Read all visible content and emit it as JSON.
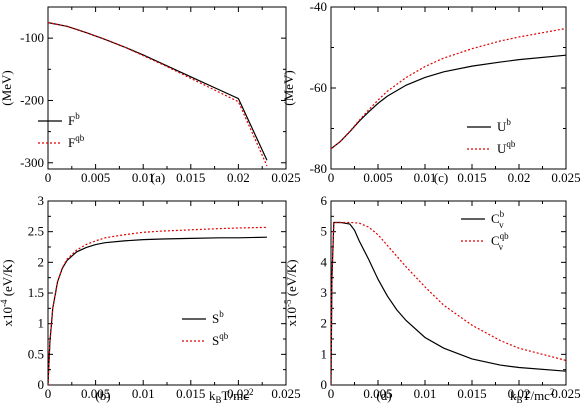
{
  "chart_data": [
    {
      "id": "a",
      "type": "line",
      "panel_label": "(a)",
      "ylabel": "(MeV)",
      "xlabel": "",
      "xlim": [
        0,
        0.025
      ],
      "ylim": [
        -310,
        -50
      ],
      "xticks": [
        0,
        0.005,
        0.01,
        0.015,
        0.02,
        0.025
      ],
      "xtick_labels": [
        "0",
        "0.005",
        "0.01",
        "0.015",
        "0.02",
        "0.025"
      ],
      "yticks": [
        -300,
        -200,
        -100
      ],
      "ytick_labels": [
        "-300",
        "-200",
        "-100"
      ],
      "legend_position": "bottom-left",
      "series": [
        {
          "name": "F",
          "sup": "b",
          "color": "#000000",
          "dash": "",
          "x": [
            0,
            0.002,
            0.004,
            0.006,
            0.008,
            0.01,
            0.012,
            0.014,
            0.016,
            0.018,
            0.02,
            0.023
          ],
          "y": [
            -75,
            -81,
            -91,
            -102,
            -114,
            -127,
            -141,
            -155,
            -169,
            -183,
            -197,
            -296
          ]
        },
        {
          "name": "F",
          "sup": "qb",
          "color": "#e00000",
          "dash": "2,2",
          "x": [
            0,
            0.002,
            0.004,
            0.006,
            0.008,
            0.01,
            0.012,
            0.014,
            0.016,
            0.018,
            0.02,
            0.023
          ],
          "y": [
            -75,
            -81,
            -91,
            -102,
            -114,
            -128,
            -142,
            -157,
            -172,
            -187,
            -202,
            -305
          ]
        }
      ]
    },
    {
      "id": "c",
      "type": "line",
      "panel_label": "(c)",
      "ylabel": "(MeV)",
      "xlabel": "",
      "xlim": [
        0,
        0.025
      ],
      "ylim": [
        -80,
        -40
      ],
      "xticks": [
        0,
        0.005,
        0.01,
        0.015,
        0.02,
        0.025
      ],
      "xtick_labels": [
        "0",
        "0.005",
        "0.01",
        "0.015",
        "0.02",
        "0.025"
      ],
      "yticks": [
        -80,
        -60,
        -40
      ],
      "ytick_labels": [
        "-80",
        "-60",
        "-40"
      ],
      "legend_position": "bottom-right",
      "series": [
        {
          "name": "U",
          "sup": "b",
          "color": "#000000",
          "dash": "",
          "x": [
            0,
            0.001,
            0.002,
            0.003,
            0.004,
            0.005,
            0.006,
            0.008,
            0.01,
            0.012,
            0.015,
            0.018,
            0.02,
            0.025
          ],
          "y": [
            -75,
            -73.2,
            -70.8,
            -68.2,
            -65.9,
            -63.8,
            -62.0,
            -59.3,
            -57.4,
            -56.0,
            -54.6,
            -53.6,
            -53.0,
            -51.9
          ]
        },
        {
          "name": "U",
          "sup": "qb",
          "color": "#e00000",
          "dash": "2,2",
          "x": [
            0,
            0.001,
            0.002,
            0.003,
            0.004,
            0.005,
            0.006,
            0.008,
            0.01,
            0.012,
            0.015,
            0.018,
            0.02,
            0.025
          ],
          "y": [
            -75,
            -73.2,
            -70.7,
            -68.0,
            -65.4,
            -63.0,
            -60.8,
            -57.4,
            -54.7,
            -52.6,
            -50.3,
            -48.4,
            -47.4,
            -45.3
          ]
        }
      ]
    },
    {
      "id": "b",
      "type": "line",
      "panel_label": "(b)",
      "ylabel": "x10",
      "ylabel_exp": "-4",
      "ylabel_unit": "(eV/K)",
      "xlabel": "k",
      "xlabel_sub": "B",
      "xlabel_rest": "T/mc",
      "xlabel_exp": "2",
      "xlim": [
        0,
        0.025
      ],
      "ylim": [
        0,
        3
      ],
      "xticks": [
        0,
        0.005,
        0.01,
        0.015,
        0.02,
        0.025
      ],
      "xtick_labels": [
        "0",
        "0.005",
        "0.01",
        "0.015",
        "0.02",
        "0.025"
      ],
      "yticks": [
        0,
        0.5,
        1,
        1.5,
        2,
        2.5,
        3
      ],
      "ytick_labels": [
        "0",
        "0.5",
        "1",
        "1.5",
        "2",
        "2.5",
        "3"
      ],
      "legend_position": "bottom-right",
      "series": [
        {
          "name": "S",
          "sup": "b",
          "color": "#000000",
          "dash": "",
          "x": [
            0,
            0.0002,
            0.0005,
            0.001,
            0.0015,
            0.002,
            0.003,
            0.004,
            0.005,
            0.006,
            0.008,
            0.01,
            0.012,
            0.015,
            0.018,
            0.02,
            0.023
          ],
          "y": [
            0,
            0.7,
            1.25,
            1.68,
            1.9,
            2.03,
            2.17,
            2.24,
            2.29,
            2.32,
            2.35,
            2.37,
            2.38,
            2.39,
            2.4,
            2.4,
            2.41
          ]
        },
        {
          "name": "S",
          "sup": "qb",
          "color": "#e00000",
          "dash": "2,2",
          "x": [
            0,
            0.0002,
            0.0005,
            0.001,
            0.0015,
            0.002,
            0.003,
            0.004,
            0.005,
            0.006,
            0.008,
            0.01,
            0.012,
            0.015,
            0.018,
            0.02,
            0.023
          ],
          "y": [
            0,
            0.7,
            1.25,
            1.68,
            1.91,
            2.05,
            2.2,
            2.29,
            2.35,
            2.4,
            2.45,
            2.49,
            2.51,
            2.53,
            2.55,
            2.56,
            2.57
          ]
        }
      ]
    },
    {
      "id": "d",
      "type": "line",
      "panel_label": "(d)",
      "ylabel": "x10",
      "ylabel_exp": "-5",
      "ylabel_unit": "(eV/K)",
      "xlabel": "k",
      "xlabel_sub": "B",
      "xlabel_rest": "T/mc",
      "xlabel_exp": "2",
      "xlim": [
        0,
        0.025
      ],
      "ylim": [
        0,
        6
      ],
      "xticks": [
        0,
        0.005,
        0.01,
        0.015,
        0.02,
        0.025
      ],
      "xtick_labels": [
        "0",
        "0.005",
        "0.01",
        "0.015",
        "0.02",
        "0.025"
      ],
      "yticks": [
        0,
        1,
        2,
        3,
        4,
        5,
        6
      ],
      "ytick_labels": [
        "0",
        "1",
        "2",
        "3",
        "4",
        "5",
        "6"
      ],
      "legend_position": "top-right",
      "legend_sub": "v",
      "series": [
        {
          "name": "C",
          "sup": "b",
          "color": "#000000",
          "dash": "",
          "x": [
            0,
            0.0001,
            0.0003,
            0.001,
            0.002,
            0.0025,
            0.003,
            0.004,
            0.005,
            0.006,
            0.007,
            0.008,
            0.01,
            0.012,
            0.015,
            0.018,
            0.02,
            0.025
          ],
          "y": [
            0,
            3.5,
            5.3,
            5.3,
            5.25,
            5.05,
            4.7,
            4.1,
            3.45,
            2.9,
            2.45,
            2.1,
            1.55,
            1.2,
            0.85,
            0.65,
            0.57,
            0.45
          ]
        },
        {
          "name": "C",
          "sup": "qb",
          "color": "#e00000",
          "dash": "2,2",
          "x": [
            0,
            0.0001,
            0.0003,
            0.001,
            0.002,
            0.003,
            0.004,
            0.005,
            0.006,
            0.007,
            0.008,
            0.01,
            0.012,
            0.015,
            0.018,
            0.02,
            0.025
          ],
          "y": [
            0,
            3.5,
            5.3,
            5.3,
            5.3,
            5.28,
            5.15,
            4.9,
            4.55,
            4.2,
            3.85,
            3.2,
            2.6,
            1.95,
            1.45,
            1.2,
            0.8
          ]
        }
      ]
    }
  ]
}
